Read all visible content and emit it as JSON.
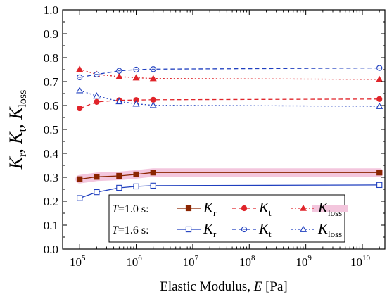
{
  "chart_data": {
    "type": "line",
    "x_scale": "log",
    "xlim": [
      50000,
      25000000000
    ],
    "ylim": [
      0.0,
      1.0
    ],
    "x_tick_labels": [
      {
        "base": "10",
        "exp": "5"
      },
      {
        "base": "10",
        "exp": "6"
      },
      {
        "base": "10",
        "exp": "7"
      },
      {
        "base": "10",
        "exp": "8"
      },
      {
        "base": "10",
        "exp": "9"
      },
      {
        "base": "10",
        "exp": "10"
      }
    ],
    "y_tick_labels": [
      "0.0",
      "0.1",
      "0.2",
      "0.3",
      "0.4",
      "0.5",
      "0.6",
      "0.7",
      "0.8",
      "0.9",
      "1.0"
    ],
    "xlabel": "Elastic Modulus, E [Pa]",
    "ylabel": {
      "parts": [
        {
          "text": "K",
          "italic": true
        },
        {
          "text": "r",
          "sub": true
        },
        {
          "text": ", "
        },
        {
          "text": "K",
          "italic": true
        },
        {
          "text": "t",
          "sub": true
        },
        {
          "text": ", "
        },
        {
          "text": "K",
          "italic": true
        },
        {
          "text": "loss",
          "sub": true
        }
      ]
    },
    "grid": false,
    "legend_position": "bottom-center",
    "x": [
      100000,
      200000,
      500000,
      1000000,
      2000000,
      20000000000
    ],
    "series": [
      {
        "name": "K_r",
        "group": "T=1.0 s",
        "values": [
          0.292,
          0.302,
          0.306,
          0.312,
          0.32,
          0.32
        ],
        "color": "#8b2500",
        "marker": "square-filled",
        "dash": "solid",
        "band": true
      },
      {
        "name": "K_t",
        "group": "T=1.0 s",
        "values": [
          0.588,
          0.615,
          0.622,
          0.623,
          0.624,
          0.627
        ],
        "color": "#e0242a",
        "marker": "circle-filled",
        "dash": "dashed"
      },
      {
        "name": "K_loss",
        "group": "T=1.0 s",
        "values": [
          0.752,
          0.73,
          0.721,
          0.716,
          0.713,
          0.709
        ],
        "color": "#e0242a",
        "marker": "triangle-filled",
        "dash": "dotted"
      },
      {
        "name": "K_r",
        "group": "T=1.6 s",
        "values": [
          0.213,
          0.238,
          0.256,
          0.262,
          0.265,
          0.268
        ],
        "color": "#1f3fbf",
        "marker": "square-open",
        "dash": "solid"
      },
      {
        "name": "K_t",
        "group": "T=1.6 s",
        "values": [
          0.718,
          0.73,
          0.745,
          0.75,
          0.752,
          0.757
        ],
        "color": "#1f3fbf",
        "marker": "circle-open",
        "dash": "dashed"
      },
      {
        "name": "K_loss",
        "group": "T=1.6 s",
        "values": [
          0.663,
          0.64,
          0.617,
          0.607,
          0.601,
          0.597
        ],
        "color": "#1f3fbf",
        "marker": "triangle-open",
        "dash": "dotted"
      }
    ],
    "legend": {
      "rows": [
        {
          "label_prefix": "T",
          "label_suffix": "=1.0 s:",
          "color": "#8b2500",
          "entries": [
            {
              "sym": "K",
              "sub": "r",
              "color": "#8b2500",
              "marker": "square-filled",
              "dash": "solid"
            },
            {
              "sym": "K",
              "sub": "t",
              "color": "#e0242a",
              "marker": "circle-filled",
              "dash": "dashed"
            },
            {
              "sym": "K",
              "sub": "loss",
              "color": "#e0242a",
              "marker": "triangle-filled",
              "dash": "dotted"
            }
          ]
        },
        {
          "label_prefix": "T",
          "label_suffix": "=1.6 s:",
          "color": "#1f3fbf",
          "entries": [
            {
              "sym": "K",
              "sub": "r",
              "color": "#1f3fbf",
              "marker": "square-open",
              "dash": "solid"
            },
            {
              "sym": "K",
              "sub": "t",
              "color": "#1f3fbf",
              "marker": "circle-open",
              "dash": "dashed"
            },
            {
              "sym": "K",
              "sub": "loss",
              "color": "#1f3fbf",
              "marker": "triangle-open",
              "dash": "dotted"
            }
          ]
        }
      ]
    },
    "colors": {
      "band": "#f3c6dd",
      "axis": "#000000"
    }
  }
}
